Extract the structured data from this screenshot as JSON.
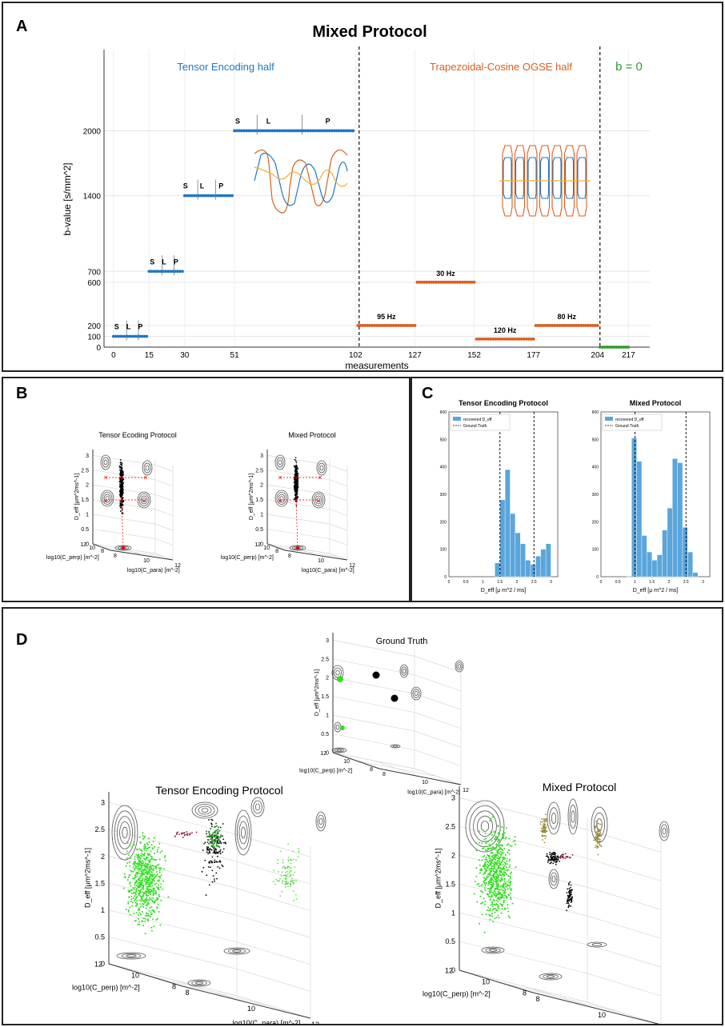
{
  "panel_labels": {
    "a": "A",
    "b": "B",
    "c": "C",
    "d": "D"
  },
  "colors": {
    "blue": "#1f77c4",
    "orange": "#d95f1f",
    "green": "#2e9a2e",
    "gold": "#f0b030",
    "hist": "#5aa6dc",
    "lime": "#33dd22"
  },
  "chart_data": [
    {
      "id": "A",
      "type": "scatter",
      "title": "Mixed Protocol",
      "xlabel": "measurements",
      "ylabel": "b-value [s/mm^2]",
      "xticks": [
        0,
        15,
        30,
        51,
        102,
        127,
        152,
        177,
        204,
        217
      ],
      "yticks": [
        0,
        100,
        200,
        600,
        700,
        1400,
        2000
      ],
      "xlim": [
        -4,
        226
      ],
      "ylim": [
        0,
        2750
      ],
      "section_labels": [
        "Tensor Encoding half",
        "Trapezoidal-Cosine OGSE half",
        "b = 0"
      ],
      "dividers_x": [
        103.5,
        205
      ],
      "series": [
        {
          "name": "Tensor 100",
          "color": "blue",
          "x_start": 0,
          "x_end": 14,
          "b": 100,
          "marks": [
            "S",
            "L",
            "P"
          ],
          "mark_x": [
            3,
            8,
            13
          ]
        },
        {
          "name": "Tensor 700",
          "color": "blue",
          "x_start": 15,
          "x_end": 29,
          "b": 700,
          "marks": [
            "S",
            "L",
            "P"
          ],
          "mark_x": [
            18,
            23,
            28
          ]
        },
        {
          "name": "Tensor 1400",
          "color": "blue",
          "x_start": 30,
          "x_end": 50,
          "b": 1400,
          "marks": [
            "S",
            "L",
            "P"
          ],
          "mark_x": [
            32,
            39,
            47
          ]
        },
        {
          "name": "Tensor 2000",
          "color": "blue",
          "x_start": 51,
          "x_end": 101,
          "b": 2000,
          "marks": [
            "S",
            "L",
            "P"
          ],
          "mark_x": [
            54,
            67,
            92
          ]
        },
        {
          "name": "95 Hz",
          "color": "orange",
          "x_start": 103,
          "x_end": 127,
          "b": 200,
          "freq": "95 Hz"
        },
        {
          "name": "30 Hz",
          "color": "orange",
          "x_start": 128,
          "x_end": 152,
          "b": 600,
          "freq": "30 Hz"
        },
        {
          "name": "120 Hz",
          "color": "orange",
          "x_start": 153,
          "x_end": 177,
          "b": 75,
          "freq": "120 Hz"
        },
        {
          "name": "80 Hz",
          "color": "orange",
          "x_start": 178,
          "x_end": 204,
          "b": 200,
          "freq": "80 Hz"
        },
        {
          "name": "b0",
          "color": "green",
          "x_start": 205,
          "x_end": 217,
          "b": 0
        }
      ]
    },
    {
      "id": "B1",
      "type": "scatter",
      "title": "Tensor Ecoding Protocol",
      "zlabel": "D_eff [μm^2ms^-1]",
      "xlabel": "log10(C_para) [m^-2]",
      "ylabel": "log10(C_perp) [m^-2]",
      "zticks": [
        0,
        0.5,
        1,
        1.5,
        2,
        2.5,
        3
      ],
      "xticks": [
        8,
        10,
        12
      ],
      "yticks": [
        8,
        10,
        12
      ]
    },
    {
      "id": "B2",
      "type": "scatter",
      "title": "Mixed Protocol",
      "zlabel": "D_eff [μm^2ms^-1]",
      "xlabel": "log10(C_para) [m^-2]",
      "ylabel": "log10(C_perp) [m^-2]",
      "zticks": [
        0,
        0.5,
        1,
        1.5,
        2,
        2.5,
        3
      ],
      "xticks": [
        8,
        10,
        12
      ],
      "yticks": [
        8,
        10,
        12
      ]
    },
    {
      "id": "C1",
      "type": "bar",
      "title": "Tensor Encoding Protocol",
      "xlabel": "D_eff [μ m^2 / ms]",
      "ylim": [
        0,
        600
      ],
      "yticks": [
        0,
        100,
        200,
        300,
        400,
        500,
        600
      ],
      "xticks": [
        0,
        0.5,
        1,
        1.5,
        2,
        2.5,
        3
      ],
      "bin_width": 0.15,
      "bins": [
        1.35,
        1.5,
        1.65,
        1.8,
        1.95,
        2.1,
        2.25,
        2.4,
        2.55,
        2.7,
        2.85
      ],
      "values": [
        50,
        280,
        390,
        230,
        160,
        120,
        60,
        45,
        75,
        100,
        120
      ],
      "ground_truth": [
        1.5,
        2.5
      ],
      "legend": [
        "recovered D_eff",
        "Ground Truth"
      ]
    },
    {
      "id": "C2",
      "type": "bar",
      "title": "Mixed Protocol",
      "xlabel": "D_eff [μ m^2 / ms]",
      "ylim": [
        0,
        600
      ],
      "yticks": [
        0,
        100,
        200,
        300,
        400,
        500,
        600
      ],
      "xticks": [
        0,
        0.5,
        1,
        1.5,
        2,
        2.5,
        3
      ],
      "bin_width": 0.15,
      "bins": [
        0.75,
        0.9,
        1.05,
        1.2,
        1.35,
        1.5,
        1.65,
        1.8,
        1.95,
        2.1,
        2.25,
        2.4,
        2.55,
        2.7
      ],
      "values": [
        2,
        505,
        420,
        150,
        90,
        60,
        80,
        170,
        250,
        430,
        415,
        180,
        90,
        15
      ],
      "ground_truth": [
        1.0,
        2.5
      ],
      "legend": [
        "recovered D_eff",
        "Ground Truth"
      ]
    },
    {
      "id": "D0",
      "type": "scatter",
      "title": "Ground Truth",
      "zlabel": "D_eff [μm^2ms^-1]",
      "xlabel": "log10(C_para) [m^-2]",
      "ylabel": "log10(C_perp) [m^-2]",
      "zticks": [
        0,
        0.5,
        1,
        1.5,
        2,
        2.5,
        3
      ],
      "xticks": [
        8,
        10,
        12
      ],
      "yticks": [
        8,
        10,
        12
      ]
    },
    {
      "id": "D1",
      "type": "scatter",
      "title": "Tensor Encoding Protocol",
      "zlabel": "D_eff [μm^2ms^-1]",
      "xlabel": "log10(C_para) [m^-2]",
      "ylabel": "log10(C_perp) [m^-2]",
      "zticks": [
        0,
        0.5,
        1,
        1.5,
        2,
        2.5,
        3
      ],
      "xticks": [
        8,
        10,
        12
      ],
      "yticks": [
        8,
        10,
        12
      ]
    },
    {
      "id": "D2",
      "type": "scatter",
      "title": "Mixed Protocol",
      "zlabel": "D_eff [μm^2ms^-1]",
      "xlabel": "log10(C_para) [m^-2]",
      "ylabel": "log10(C_perp) [m^-2]",
      "zticks": [
        0,
        0.5,
        1,
        1.5,
        2,
        2.5,
        3
      ],
      "xticks": [
        8,
        10,
        12
      ],
      "yticks": [
        8,
        10,
        12
      ]
    }
  ]
}
